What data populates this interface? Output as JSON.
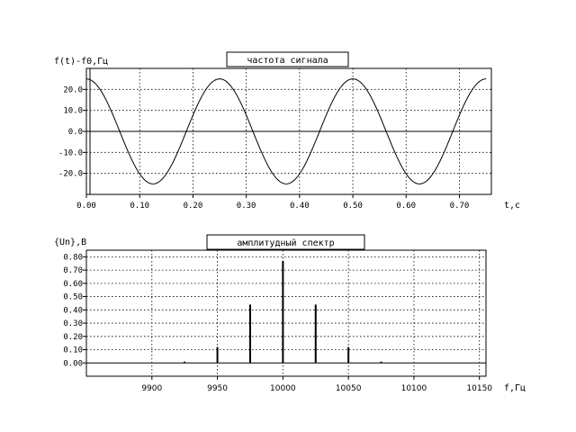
{
  "chart_data": [
    {
      "type": "line",
      "title": "частота сигнала",
      "ylabel": "f(t)-f0,Гц",
      "xlabel": "t,c",
      "xlim": [
        0,
        0.76
      ],
      "ylim": [
        -30,
        30
      ],
      "x_ticks": [
        "0.00",
        "0.10",
        "0.20",
        "0.30",
        "0.40",
        "0.50",
        "0.60",
        "0.70"
      ],
      "y_ticks": [
        "20.0",
        "10.0",
        "0.0",
        "-10.0",
        "-20.0"
      ],
      "grid": true,
      "series": [
        {
          "function": "25*cos(2*pi*4*t)",
          "t_range": [
            0,
            0.75
          ]
        }
      ]
    },
    {
      "type": "bar",
      "title": "амплитудный спектр",
      "ylabel": "{Un},В",
      "xlabel": "f,Гц",
      "xlim": [
        9850,
        10155
      ],
      "ylim": [
        -0.1,
        0.85
      ],
      "x_ticks": [
        "9900",
        "9950",
        "10000",
        "10050",
        "10100",
        "10150"
      ],
      "y_ticks": [
        "0.80",
        "0.70",
        "0.60",
        "0.50",
        "0.40",
        "0.30",
        "0.20",
        "0.10",
        "0.00"
      ],
      "grid": true,
      "x": [
        9925,
        9950,
        9975,
        10000,
        10025,
        10050,
        10075
      ],
      "values": [
        0.01,
        0.12,
        0.44,
        0.77,
        0.44,
        0.12,
        0.01
      ]
    }
  ]
}
